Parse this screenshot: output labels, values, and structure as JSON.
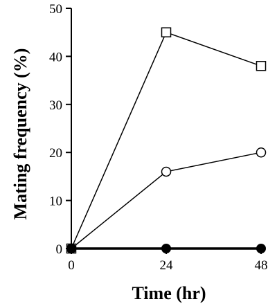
{
  "chart_data": {
    "type": "line",
    "title": "",
    "xlabel": "Time (hr)",
    "ylabel": "Mating frequency (%)",
    "xlim": [
      0,
      48
    ],
    "ylim": [
      0,
      50
    ],
    "x_ticks": [
      0,
      24,
      48
    ],
    "y_ticks": [
      0,
      10,
      20,
      30,
      40,
      50
    ],
    "grid": false,
    "series": [
      {
        "marker": "open-square",
        "x": [
          0,
          24,
          48
        ],
        "y": [
          0,
          45,
          38
        ]
      },
      {
        "marker": "open-circle",
        "x": [
          0,
          24,
          48
        ],
        "y": [
          0,
          16,
          20
        ]
      },
      {
        "marker": "filled-circle",
        "x": [
          0,
          24,
          48
        ],
        "y": [
          0,
          0,
          0
        ]
      }
    ]
  }
}
